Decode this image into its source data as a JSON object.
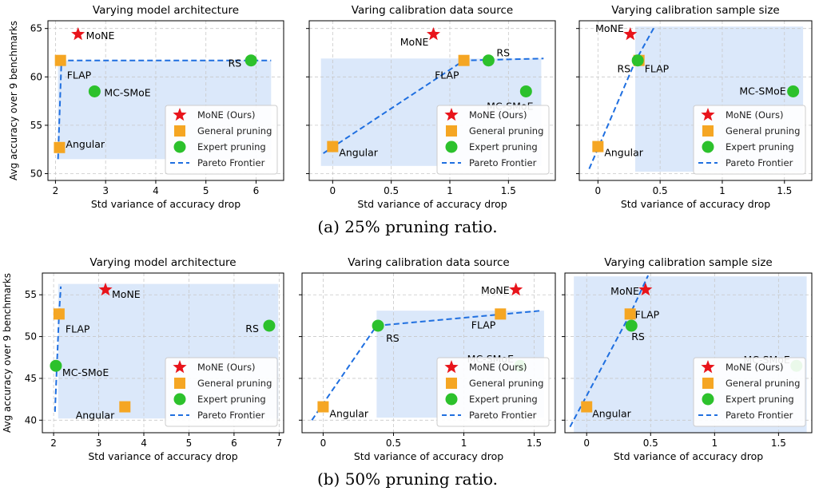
{
  "figure": {
    "ylabel": "Avg accuracy over 9 benchmarks",
    "captions": [
      "(a) 25% pruning ratio.",
      "(b) 50% pruning ratio."
    ],
    "legend": {
      "mone": "MoNE (Ours)",
      "general": "General pruning",
      "expert": "Expert pruning",
      "pareto": "Pareto Frontier"
    },
    "colors": {
      "mone": "#e8141b",
      "general": "#f5a623",
      "expert": "#2cc12c",
      "pareto": "#1f6fe0",
      "region": "#dbe8fa"
    }
  },
  "chart_data": [
    {
      "type": "scatter",
      "title": "Varying model architecture",
      "xlabel": "Std variance of accuracy drop",
      "xlim": [
        1.85,
        6.55
      ],
      "ylim": [
        49.3,
        65.8
      ],
      "xticks": [
        2,
        3,
        4,
        5,
        6
      ],
      "yticks": [
        50,
        55,
        60,
        65
      ],
      "ytick_labels": true,
      "points": [
        {
          "label": "MoNE",
          "group": "mone",
          "x": 2.45,
          "y": 64.4
        },
        {
          "label": "FLAP",
          "group": "general",
          "x": 2.1,
          "y": 61.7
        },
        {
          "label": "Angular",
          "group": "general",
          "x": 2.08,
          "y": 52.7
        },
        {
          "label": "RS",
          "group": "expert",
          "x": 5.9,
          "y": 61.7
        },
        {
          "label": "MC-SMoE",
          "group": "expert",
          "x": 2.78,
          "y": 58.5
        }
      ],
      "pareto": [
        [
          2.05,
          51.5
        ],
        [
          2.12,
          61.7
        ],
        [
          6.3,
          61.7
        ]
      ],
      "region": [
        2.05,
        6.3,
        51.5,
        61.7
      ]
    },
    {
      "type": "scatter",
      "title": "Varing calibration data source",
      "xlabel": "Std variance of accuracy drop",
      "xlim": [
        -0.2,
        1.9
      ],
      "ylim": [
        49.3,
        65.8
      ],
      "xticks": [
        0.0,
        0.5,
        1.0,
        1.5
      ],
      "yticks": [
        50,
        55,
        60,
        65
      ],
      "ytick_labels": false,
      "points": [
        {
          "label": "MoNE",
          "group": "mone",
          "x": 0.86,
          "y": 64.4
        },
        {
          "label": "FLAP",
          "group": "general",
          "x": 1.12,
          "y": 61.7
        },
        {
          "label": "Angular",
          "group": "general",
          "x": 0.0,
          "y": 52.8
        },
        {
          "label": "RS",
          "group": "expert",
          "x": 1.33,
          "y": 61.7
        },
        {
          "label": "MC-SMoE",
          "group": "expert",
          "x": 1.65,
          "y": 58.5
        }
      ],
      "pareto": [
        [
          -0.08,
          52.1
        ],
        [
          1.12,
          61.7
        ],
        [
          1.8,
          61.9
        ]
      ],
      "region": [
        -0.1,
        1.78,
        50.8,
        61.9
      ]
    },
    {
      "type": "scatter",
      "title": "Varying calibration sample size",
      "xlabel": "Std variance of accuracy drop",
      "xlim": [
        -0.15,
        1.72
      ],
      "ylim": [
        49.3,
        65.8
      ],
      "xticks": [
        0.0,
        0.5,
        1.0,
        1.5
      ],
      "yticks": [
        50,
        55,
        60,
        65
      ],
      "ytick_labels": false,
      "points": [
        {
          "label": "MoNE",
          "group": "mone",
          "x": 0.26,
          "y": 64.4
        },
        {
          "label": "FLAP",
          "group": "general",
          "x": 0.33,
          "y": 61.7
        },
        {
          "label": "Angular",
          "group": "general",
          "x": 0.0,
          "y": 52.8
        },
        {
          "label": "RS",
          "group": "expert",
          "x": 0.32,
          "y": 61.7
        },
        {
          "label": "MC-SMoE",
          "group": "expert",
          "x": 1.57,
          "y": 58.5
        }
      ],
      "pareto": [
        [
          -0.07,
          50.5
        ],
        [
          0.3,
          61.6
        ],
        [
          0.46,
          65.3
        ]
      ],
      "region": [
        0.3,
        1.65,
        50.2,
        65.2
      ]
    },
    {
      "type": "scatter",
      "title": "Varying model architecture",
      "xlabel": "Std variance of accuracy drop",
      "xlim": [
        1.75,
        7.1
      ],
      "ylim": [
        38.5,
        57.6
      ],
      "xticks": [
        2,
        3,
        4,
        5,
        6,
        7
      ],
      "yticks": [
        40,
        45,
        50,
        55
      ],
      "ytick_labels": true,
      "points": [
        {
          "label": "MoNE",
          "group": "mone",
          "x": 3.15,
          "y": 55.6
        },
        {
          "label": "FLAP",
          "group": "general",
          "x": 2.12,
          "y": 52.7
        },
        {
          "label": "Angular",
          "group": "general",
          "x": 3.58,
          "y": 41.6
        },
        {
          "label": "RS",
          "group": "expert",
          "x": 6.78,
          "y": 51.3
        },
        {
          "label": "MC-SMoE",
          "group": "expert",
          "x": 2.05,
          "y": 46.5
        }
      ],
      "pareto": [
        [
          2.03,
          41.0
        ],
        [
          2.12,
          52.7
        ],
        [
          2.16,
          56.0
        ]
      ],
      "region": [
        2.1,
        6.98,
        40.2,
        56.3
      ]
    },
    {
      "type": "scatter",
      "title": "Varing calibration data source",
      "xlabel": "Std variance of accuracy drop",
      "xlim": [
        -0.15,
        1.65
      ],
      "ylim": [
        38.5,
        57.6
      ],
      "xticks": [
        0.0,
        0.5,
        1.0,
        1.5
      ],
      "yticks": [
        40,
        45,
        50,
        55
      ],
      "ytick_labels": false,
      "points": [
        {
          "label": "MoNE",
          "group": "mone",
          "x": 1.37,
          "y": 55.6
        },
        {
          "label": "FLAP",
          "group": "general",
          "x": 1.26,
          "y": 52.7
        },
        {
          "label": "Angular",
          "group": "general",
          "x": 0.0,
          "y": 41.6
        },
        {
          "label": "RS",
          "group": "expert",
          "x": 0.39,
          "y": 51.3
        },
        {
          "label": "MC-SMoE",
          "group": "expert",
          "x": 1.4,
          "y": 46.5
        }
      ],
      "pareto": [
        [
          -0.08,
          40.0
        ],
        [
          0.38,
          51.3
        ],
        [
          1.55,
          53.1
        ]
      ],
      "region": [
        0.38,
        1.57,
        40.3,
        53.1
      ]
    },
    {
      "type": "scatter",
      "title": "Varying calibration sample size",
      "xlabel": "Std variance of accuracy drop",
      "xlim": [
        -0.17,
        1.76
      ],
      "ylim": [
        38.5,
        57.6
      ],
      "xticks": [
        0.0,
        0.5,
        1.0,
        1.5
      ],
      "yticks": [
        40,
        45,
        50,
        55
      ],
      "ytick_labels": false,
      "points": [
        {
          "label": "MoNE",
          "group": "mone",
          "x": 0.46,
          "y": 55.6
        },
        {
          "label": "FLAP",
          "group": "general",
          "x": 0.34,
          "y": 52.7
        },
        {
          "label": "Angular",
          "group": "general",
          "x": 0.0,
          "y": 41.6
        },
        {
          "label": "RS",
          "group": "expert",
          "x": 0.35,
          "y": 51.3
        },
        {
          "label": "MC-SMoE",
          "group": "expert",
          "x": 1.64,
          "y": 46.5
        }
      ],
      "pareto": [
        [
          -0.13,
          39.2
        ],
        [
          0.34,
          52.7
        ],
        [
          0.48,
          57.3
        ]
      ],
      "region": [
        -0.1,
        1.72,
        38.1,
        57.2
      ]
    }
  ]
}
